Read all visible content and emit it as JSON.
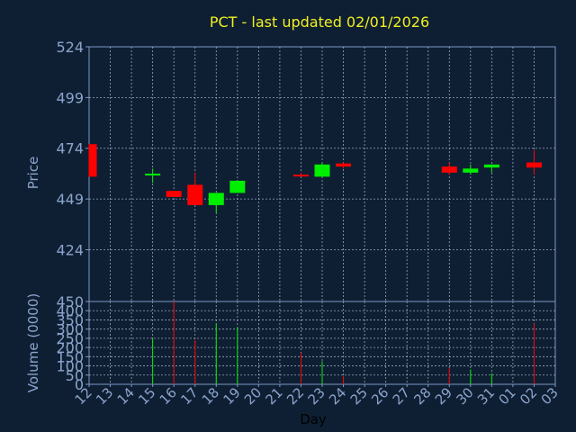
{
  "chart_data": {
    "type": "candlestick",
    "title": "PCT - last updated 02/01/2026",
    "xlabel": "Day",
    "price_label": "Price",
    "volume_label": "Volume (0000)",
    "days": [
      "12",
      "13",
      "14",
      "15",
      "16",
      "17",
      "18",
      "19",
      "20",
      "21",
      "22",
      "23",
      "24",
      "25",
      "26",
      "27",
      "28",
      "29",
      "30",
      "31",
      "01",
      "02",
      "03"
    ],
    "price_ticks": [
      "524",
      "499",
      "474",
      "449",
      "424"
    ],
    "price_range": [
      398.5,
      524
    ],
    "volume_ticks": [
      "450",
      "400",
      "350",
      "300",
      "250",
      "200",
      "150",
      "100",
      "50",
      "0"
    ],
    "volume_range": [
      0,
      450
    ],
    "grid": true,
    "colors": {
      "background": "#0f1f33",
      "plot_border": "#7a9ac4",
      "grid": "#b8c8dc",
      "title": "#f0f020",
      "axis_text": "#8aa4cc",
      "xlabel": "#000000",
      "up": "#00ee00",
      "down": "#ff0000"
    },
    "candles": [
      {
        "day": "12",
        "open": 476,
        "high": 476,
        "low": 460,
        "close": 460,
        "volume": 0
      },
      {
        "day": "15",
        "open": 461,
        "high": 464,
        "low": 457,
        "close": 461.5,
        "volume": 250
      },
      {
        "day": "16",
        "open": 453,
        "high": 453,
        "low": 450,
        "close": 450,
        "volume": 450
      },
      {
        "day": "17",
        "open": 456,
        "high": 462,
        "low": 446,
        "close": 446,
        "volume": 240
      },
      {
        "day": "18",
        "open": 446,
        "high": 452,
        "low": 442,
        "close": 452,
        "volume": 330
      },
      {
        "day": "19",
        "open": 452,
        "high": 458,
        "low": 452,
        "close": 458,
        "volume": 310
      },
      {
        "day": "22",
        "open": 461,
        "high": 462,
        "low": 460,
        "close": 460.5,
        "volume": 170
      },
      {
        "day": "23",
        "open": 460,
        "high": 467,
        "low": 460,
        "close": 466,
        "volume": 125
      },
      {
        "day": "24",
        "open": 466.5,
        "high": 467,
        "low": 464,
        "close": 465,
        "volume": 45
      },
      {
        "day": "29",
        "open": 465,
        "high": 467,
        "low": 461,
        "close": 462,
        "volume": 90
      },
      {
        "day": "30",
        "open": 462,
        "high": 466,
        "low": 461,
        "close": 464,
        "volume": 80
      },
      {
        "day": "31",
        "open": 464.5,
        "high": 466,
        "low": 462,
        "close": 466,
        "volume": 60
      },
      {
        "day": "02",
        "open": 467,
        "high": 473,
        "low": 461,
        "close": 464.5,
        "volume": 330
      }
    ]
  }
}
